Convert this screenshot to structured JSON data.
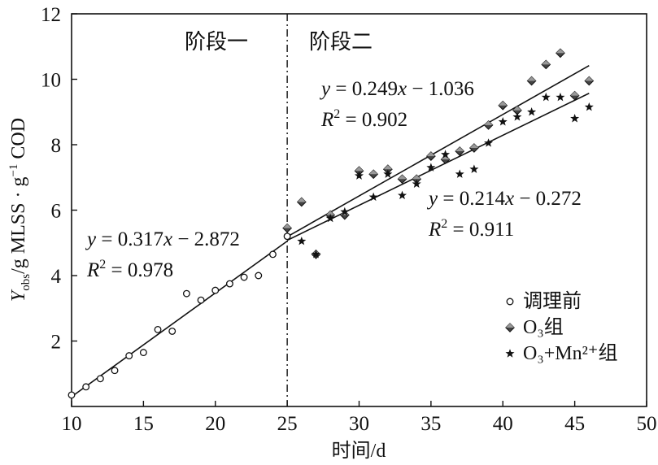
{
  "chart_data": {
    "type": "scatter",
    "xlabel": "时间/d",
    "ylabel": {
      "main": "Y",
      "sub": "obs",
      "rest": "/g MLSS · g",
      "sup": "−1",
      "tail": " COD"
    },
    "xlim": [
      10,
      50
    ],
    "ylim": [
      0,
      12
    ],
    "xticks": [
      10,
      15,
      20,
      25,
      30,
      35,
      40,
      45,
      50
    ],
    "yticks": [
      2,
      4,
      6,
      8,
      10,
      12
    ],
    "grid": false,
    "legend_position": "lower-right",
    "divider_x": 25,
    "stage_labels": [
      "阶段一",
      "阶段二"
    ],
    "series": [
      {
        "name": "调理前",
        "marker": "circle",
        "points": [
          [
            10,
            0.35
          ],
          [
            11,
            0.6
          ],
          [
            12,
            0.85
          ],
          [
            13,
            1.1
          ],
          [
            14,
            1.55
          ],
          [
            15,
            1.65
          ],
          [
            16,
            2.35
          ],
          [
            17,
            2.3
          ],
          [
            18,
            3.45
          ],
          [
            19,
            3.25
          ],
          [
            20,
            3.55
          ],
          [
            21,
            3.75
          ],
          [
            22,
            3.95
          ],
          [
            23,
            4.0
          ],
          [
            24,
            4.65
          ],
          [
            25,
            5.2
          ]
        ],
        "fit": {
          "slope": 0.317,
          "intercept": -2.872,
          "x_range": [
            10,
            25
          ]
        }
      },
      {
        "name": "O₃组",
        "marker": "diamond",
        "points": [
          [
            25,
            5.45
          ],
          [
            26,
            6.25
          ],
          [
            27,
            4.65
          ],
          [
            28,
            5.85
          ],
          [
            29,
            5.85
          ],
          [
            30,
            7.2
          ],
          [
            31,
            7.1
          ],
          [
            32,
            7.25
          ],
          [
            33,
            6.95
          ],
          [
            34,
            6.95
          ],
          [
            35,
            7.65
          ],
          [
            36,
            7.55
          ],
          [
            37,
            7.8
          ],
          [
            38,
            7.9
          ],
          [
            39,
            8.6
          ],
          [
            40,
            9.2
          ],
          [
            41,
            9.05
          ],
          [
            42,
            9.95
          ],
          [
            43,
            10.45
          ],
          [
            44,
            10.8
          ],
          [
            45,
            9.5
          ],
          [
            46,
            9.95
          ]
        ],
        "fit": {
          "slope": 0.249,
          "intercept": -1.036,
          "x_range": [
            25,
            46
          ]
        }
      },
      {
        "name": "O₃+Mn²⁺组",
        "marker": "star",
        "points": [
          [
            26,
            5.05
          ],
          [
            27,
            4.65
          ],
          [
            28,
            5.75
          ],
          [
            29,
            5.95
          ],
          [
            30,
            7.05
          ],
          [
            31,
            6.4
          ],
          [
            32,
            7.1
          ],
          [
            33,
            6.45
          ],
          [
            34,
            6.8
          ],
          [
            35,
            7.3
          ],
          [
            36,
            7.7
          ],
          [
            37,
            7.1
          ],
          [
            38,
            7.25
          ],
          [
            39,
            8.05
          ],
          [
            40,
            8.7
          ],
          [
            41,
            8.85
          ],
          [
            42,
            9.0
          ],
          [
            43,
            9.45
          ],
          [
            44,
            9.45
          ],
          [
            45,
            8.8
          ],
          [
            46,
            9.15
          ]
        ],
        "fit": {
          "slope": 0.214,
          "intercept": -0.272,
          "x_range": [
            25,
            46
          ]
        }
      }
    ],
    "annotations": [
      {
        "id": "fit1",
        "eq": {
          "y": "y",
          "mid": " = 0.317",
          "x": "x",
          "rest": " − 2.872"
        },
        "r2": {
          "R": "R",
          "sup": "2",
          "rest": " = 0.978"
        }
      },
      {
        "id": "fit2",
        "eq": {
          "y": "y",
          "mid": " = 0.249",
          "x": "x",
          "rest": " − 1.036"
        },
        "r2": {
          "R": "R",
          "sup": "2",
          "rest": " = 0.902"
        }
      },
      {
        "id": "fit3",
        "eq": {
          "y": "y",
          "mid": " = 0.214",
          "x": "x",
          "rest": " − 0.272"
        },
        "r2": {
          "R": "R",
          "sup": "2",
          "rest": " = 0.911"
        }
      }
    ]
  }
}
